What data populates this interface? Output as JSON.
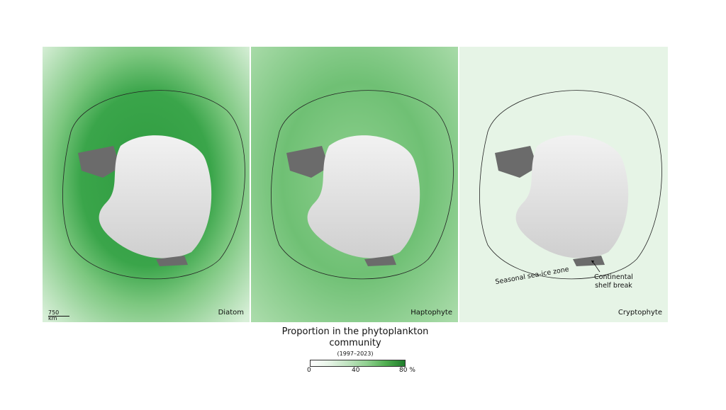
{
  "panels": [
    {
      "label": "Diatom",
      "color": "#2e9a3e"
    },
    {
      "label": "Haptophyte",
      "color": "#5dba63"
    },
    {
      "label": "Cryptophyte",
      "color": "#c7e8c7"
    }
  ],
  "scale_bar": "750 km",
  "annotations": {
    "sea_ice": "Seasonal sea-ice zone",
    "shelf_line1": "Continental",
    "shelf_line2": "shelf break"
  },
  "legend": {
    "title_line1": "Proportion in the phytoplankton",
    "title_line2": "community",
    "years": "(1997–2023)",
    "ticks": [
      "0",
      "40",
      "80 %"
    ],
    "range": [
      0,
      80
    ]
  }
}
